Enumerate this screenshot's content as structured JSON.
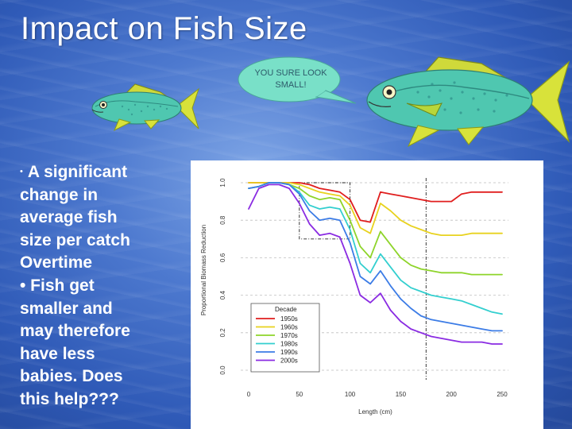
{
  "slide": {
    "title": "Impact on Fish Size",
    "bubble_lines": [
      "YOU SURE LOOK",
      "SMALL!"
    ],
    "body_lines": [
      "A significant",
      "change in",
      "average fish",
      "size per catch",
      "Overtime",
      "• Fish get",
      "smaller and",
      "may therefore",
      "have less",
      "babies. Does",
      "this help???"
    ],
    "bullet_glyph": "•",
    "colors": {
      "fish_body": "#4fc7b0",
      "fish_fin": "#d8e23a",
      "bubble_fill": "#79e0c8"
    }
  },
  "chart_data": {
    "type": "line",
    "title": "",
    "xlabel": "Length (cm)",
    "ylabel": "Proportional Biomass Reduction",
    "xlim": [
      0,
      250
    ],
    "ylim": [
      0,
      1.0
    ],
    "x_ticks": [
      "0",
      "50",
      "100",
      "150",
      "200",
      "250"
    ],
    "y_ticks": [
      "0.0",
      "0.2",
      "0.4",
      "0.6",
      "0.8",
      "1.0"
    ],
    "grid": "horizontal dashed",
    "legend": {
      "title": "Decade",
      "position": "bottom-left"
    },
    "annotations": {
      "inset_box": {
        "x": [
          50,
          100
        ],
        "y": [
          0.7,
          1.0
        ]
      },
      "vertical_line_x": 175
    },
    "x": [
      0,
      10,
      20,
      30,
      40,
      50,
      60,
      70,
      80,
      90,
      100,
      110,
      120,
      130,
      140,
      150,
      160,
      170,
      180,
      190,
      200,
      210,
      220,
      230,
      240,
      250
    ],
    "series": [
      {
        "name": "1950s",
        "color": "#e01e1e",
        "values": [
          1.0,
          1.0,
          1.0,
          1.0,
          1.0,
          1.0,
          0.99,
          0.97,
          0.96,
          0.95,
          0.91,
          0.8,
          0.79,
          0.95,
          0.94,
          0.93,
          0.92,
          0.91,
          0.9,
          0.9,
          0.9,
          0.94,
          0.95,
          0.95,
          0.95,
          0.95
        ]
      },
      {
        "name": "1960s",
        "color": "#e8d21e",
        "values": [
          1.0,
          1.0,
          1.0,
          1.0,
          1.0,
          0.99,
          0.97,
          0.95,
          0.94,
          0.93,
          0.88,
          0.76,
          0.73,
          0.89,
          0.85,
          0.8,
          0.77,
          0.75,
          0.73,
          0.72,
          0.72,
          0.72,
          0.73,
          0.73,
          0.73,
          0.73
        ]
      },
      {
        "name": "1970s",
        "color": "#8ed42a",
        "values": [
          0.97,
          0.98,
          1.0,
          1.0,
          0.99,
          0.97,
          0.93,
          0.91,
          0.92,
          0.91,
          0.8,
          0.66,
          0.6,
          0.74,
          0.67,
          0.6,
          0.56,
          0.54,
          0.53,
          0.52,
          0.52,
          0.52,
          0.51,
          0.51,
          0.51,
          0.51
        ]
      },
      {
        "name": "1980s",
        "color": "#33cfcf",
        "values": [
          0.97,
          0.98,
          1.0,
          1.0,
          0.99,
          0.95,
          0.88,
          0.86,
          0.87,
          0.86,
          0.75,
          0.57,
          0.52,
          0.62,
          0.55,
          0.48,
          0.44,
          0.42,
          0.4,
          0.39,
          0.38,
          0.37,
          0.35,
          0.33,
          0.31,
          0.3
        ]
      },
      {
        "name": "1990s",
        "color": "#3c7ce6",
        "values": [
          0.97,
          0.98,
          1.0,
          1.0,
          0.99,
          0.94,
          0.85,
          0.8,
          0.81,
          0.8,
          0.68,
          0.5,
          0.46,
          0.53,
          0.45,
          0.38,
          0.33,
          0.29,
          0.27,
          0.26,
          0.25,
          0.24,
          0.23,
          0.22,
          0.21,
          0.21
        ]
      },
      {
        "name": "2000s",
        "color": "#8a2be2",
        "values": [
          0.86,
          0.97,
          0.99,
          0.99,
          0.97,
          0.89,
          0.78,
          0.72,
          0.73,
          0.71,
          0.57,
          0.4,
          0.36,
          0.41,
          0.32,
          0.26,
          0.22,
          0.2,
          0.18,
          0.17,
          0.16,
          0.15,
          0.15,
          0.15,
          0.14,
          0.14
        ]
      }
    ]
  }
}
